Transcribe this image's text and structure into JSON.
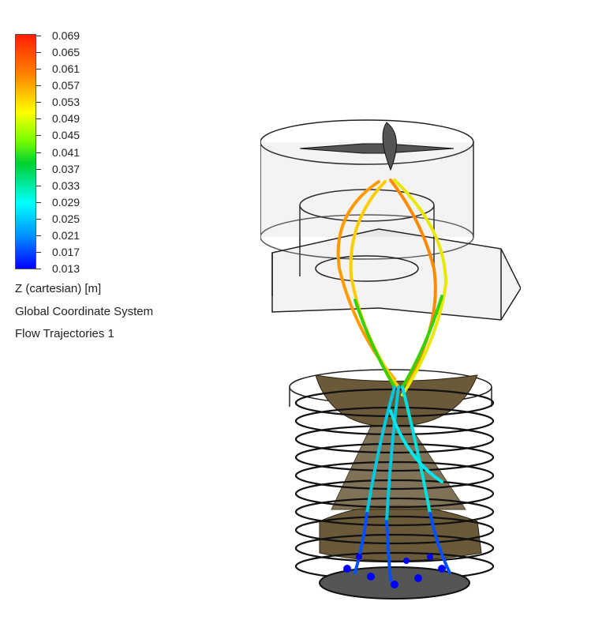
{
  "legend": {
    "ticks": [
      "0.069",
      "0.065",
      "0.061",
      "0.057",
      "0.053",
      "0.049",
      "0.045",
      "0.041",
      "0.037",
      "0.033",
      "0.029",
      "0.025",
      "0.021",
      "0.017",
      "0.013"
    ]
  },
  "info": {
    "quantity": "Z (cartesian) [m]",
    "coordinate_system": "Global Coordinate System",
    "plot_name": "Flow Trajectories 1"
  },
  "colors": {
    "high": "#ff1e00",
    "mid": "#ffff00",
    "low": "#0000ff",
    "body": "#6b5a3a"
  }
}
